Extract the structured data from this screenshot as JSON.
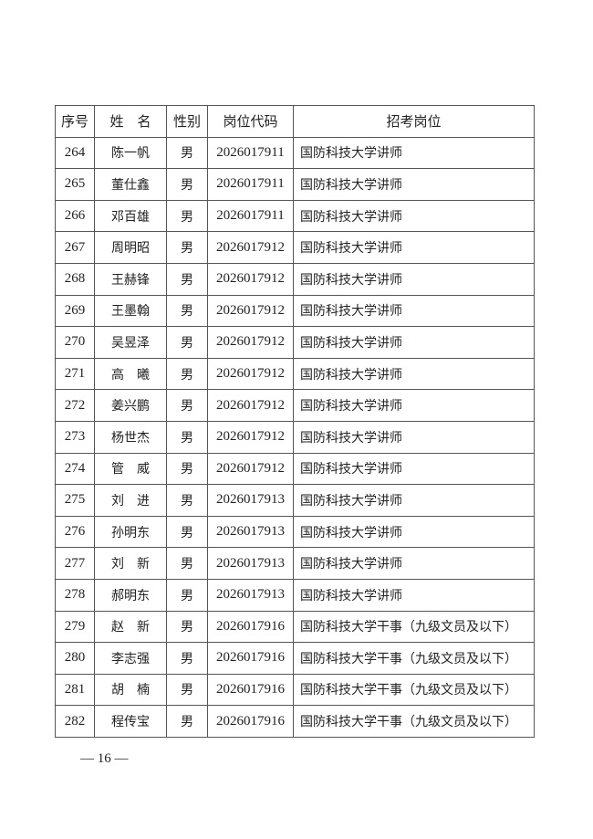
{
  "headers": [
    "序号",
    "姓　名",
    "性别",
    "岗位代码",
    "招考岗位"
  ],
  "rows": [
    [
      "264",
      "陈一帆",
      "男",
      "2026017911",
      "国防科技大学讲师"
    ],
    [
      "265",
      "董仕鑫",
      "男",
      "2026017911",
      "国防科技大学讲师"
    ],
    [
      "266",
      "邓百雄",
      "男",
      "2026017911",
      "国防科技大学讲师"
    ],
    [
      "267",
      "周明昭",
      "男",
      "2026017912",
      "国防科技大学讲师"
    ],
    [
      "268",
      "王赫锋",
      "男",
      "2026017912",
      "国防科技大学讲师"
    ],
    [
      "269",
      "王墨翰",
      "男",
      "2026017912",
      "国防科技大学讲师"
    ],
    [
      "270",
      "吴昱泽",
      "男",
      "2026017912",
      "国防科技大学讲师"
    ],
    [
      "271",
      "高　曦",
      "男",
      "2026017912",
      "国防科技大学讲师"
    ],
    [
      "272",
      "姜兴鹏",
      "男",
      "2026017912",
      "国防科技大学讲师"
    ],
    [
      "273",
      "杨世杰",
      "男",
      "2026017912",
      "国防科技大学讲师"
    ],
    [
      "274",
      "管　威",
      "男",
      "2026017912",
      "国防科技大学讲师"
    ],
    [
      "275",
      "刘　进",
      "男",
      "2026017913",
      "国防科技大学讲师"
    ],
    [
      "276",
      "孙明东",
      "男",
      "2026017913",
      "国防科技大学讲师"
    ],
    [
      "277",
      "刘　新",
      "男",
      "2026017913",
      "国防科技大学讲师"
    ],
    [
      "278",
      "郝明东",
      "男",
      "2026017913",
      "国防科技大学讲师"
    ],
    [
      "279",
      "赵　新",
      "男",
      "2026017916",
      "国防科技大学干事（九级文员及以下）"
    ],
    [
      "280",
      "李志强",
      "男",
      "2026017916",
      "国防科技大学干事（九级文员及以下）"
    ],
    [
      "281",
      "胡　楠",
      "男",
      "2026017916",
      "国防科技大学干事（九级文员及以下）"
    ],
    [
      "282",
      "程传宝",
      "男",
      "2026017916",
      "国防科技大学干事（九级文员及以下）"
    ]
  ],
  "page_number": "— 16 —"
}
